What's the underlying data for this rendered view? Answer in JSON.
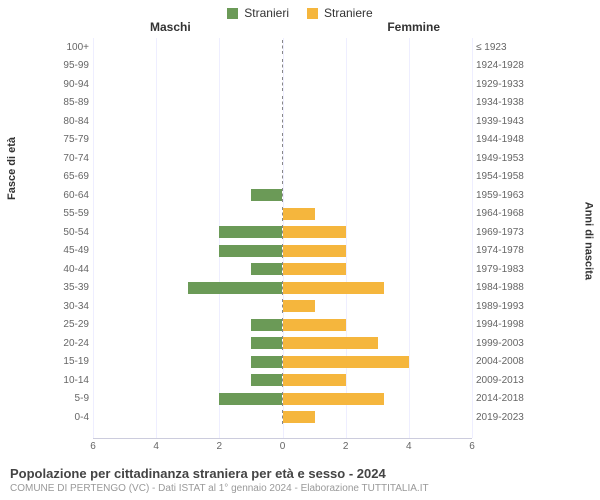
{
  "chart": {
    "type": "population-pyramid",
    "legend": [
      {
        "label": "Stranieri",
        "color": "#6b9a57"
      },
      {
        "label": "Straniere",
        "color": "#f5b63d"
      }
    ],
    "col_header_left": "Maschi",
    "col_header_right": "Femmine",
    "y_title_left": "Fasce di età",
    "y_title_right": "Anni di nascita",
    "xmax": 6,
    "xticks": [
      6,
      4,
      2,
      0,
      2,
      4,
      6
    ],
    "male_color": "#6b9a57",
    "female_color": "#f5b63d",
    "bar_border": "#ffffff",
    "grid_color": "#eeeeff",
    "background_color": "#ffffff",
    "font_family": "Arial",
    "tick_fontsize": 10,
    "label_fontsize": 11,
    "rows": [
      {
        "age": "100+",
        "birth": "≤ 1923",
        "m": 0,
        "f": 0
      },
      {
        "age": "95-99",
        "birth": "1924-1928",
        "m": 0,
        "f": 0
      },
      {
        "age": "90-94",
        "birth": "1929-1933",
        "m": 0,
        "f": 0
      },
      {
        "age": "85-89",
        "birth": "1934-1938",
        "m": 0,
        "f": 0
      },
      {
        "age": "80-84",
        "birth": "1939-1943",
        "m": 0,
        "f": 0
      },
      {
        "age": "75-79",
        "birth": "1944-1948",
        "m": 0,
        "f": 0
      },
      {
        "age": "70-74",
        "birth": "1949-1953",
        "m": 0,
        "f": 0
      },
      {
        "age": "65-69",
        "birth": "1954-1958",
        "m": 0,
        "f": 0
      },
      {
        "age": "60-64",
        "birth": "1959-1963",
        "m": 1,
        "f": 0
      },
      {
        "age": "55-59",
        "birth": "1964-1968",
        "m": 0,
        "f": 1
      },
      {
        "age": "50-54",
        "birth": "1969-1973",
        "m": 2,
        "f": 2
      },
      {
        "age": "45-49",
        "birth": "1974-1978",
        "m": 2,
        "f": 2
      },
      {
        "age": "40-44",
        "birth": "1979-1983",
        "m": 1,
        "f": 2
      },
      {
        "age": "35-39",
        "birth": "1984-1988",
        "m": 3,
        "f": 3.2
      },
      {
        "age": "30-34",
        "birth": "1989-1993",
        "m": 0,
        "f": 1
      },
      {
        "age": "25-29",
        "birth": "1994-1998",
        "m": 1,
        "f": 2
      },
      {
        "age": "20-24",
        "birth": "1999-2003",
        "m": 1,
        "f": 3
      },
      {
        "age": "15-19",
        "birth": "2004-2008",
        "m": 1,
        "f": 4
      },
      {
        "age": "10-14",
        "birth": "2009-2013",
        "m": 1,
        "f": 2
      },
      {
        "age": "5-9",
        "birth": "2014-2018",
        "m": 2,
        "f": 3.2
      },
      {
        "age": "0-4",
        "birth": "2019-2023",
        "m": 0,
        "f": 1
      }
    ]
  },
  "footer": {
    "title": "Popolazione per cittadinanza straniera per età e sesso - 2024",
    "subtitle": "COMUNE DI PERTENGO (VC) - Dati ISTAT al 1° gennaio 2024 - Elaborazione TUTTITALIA.IT"
  }
}
